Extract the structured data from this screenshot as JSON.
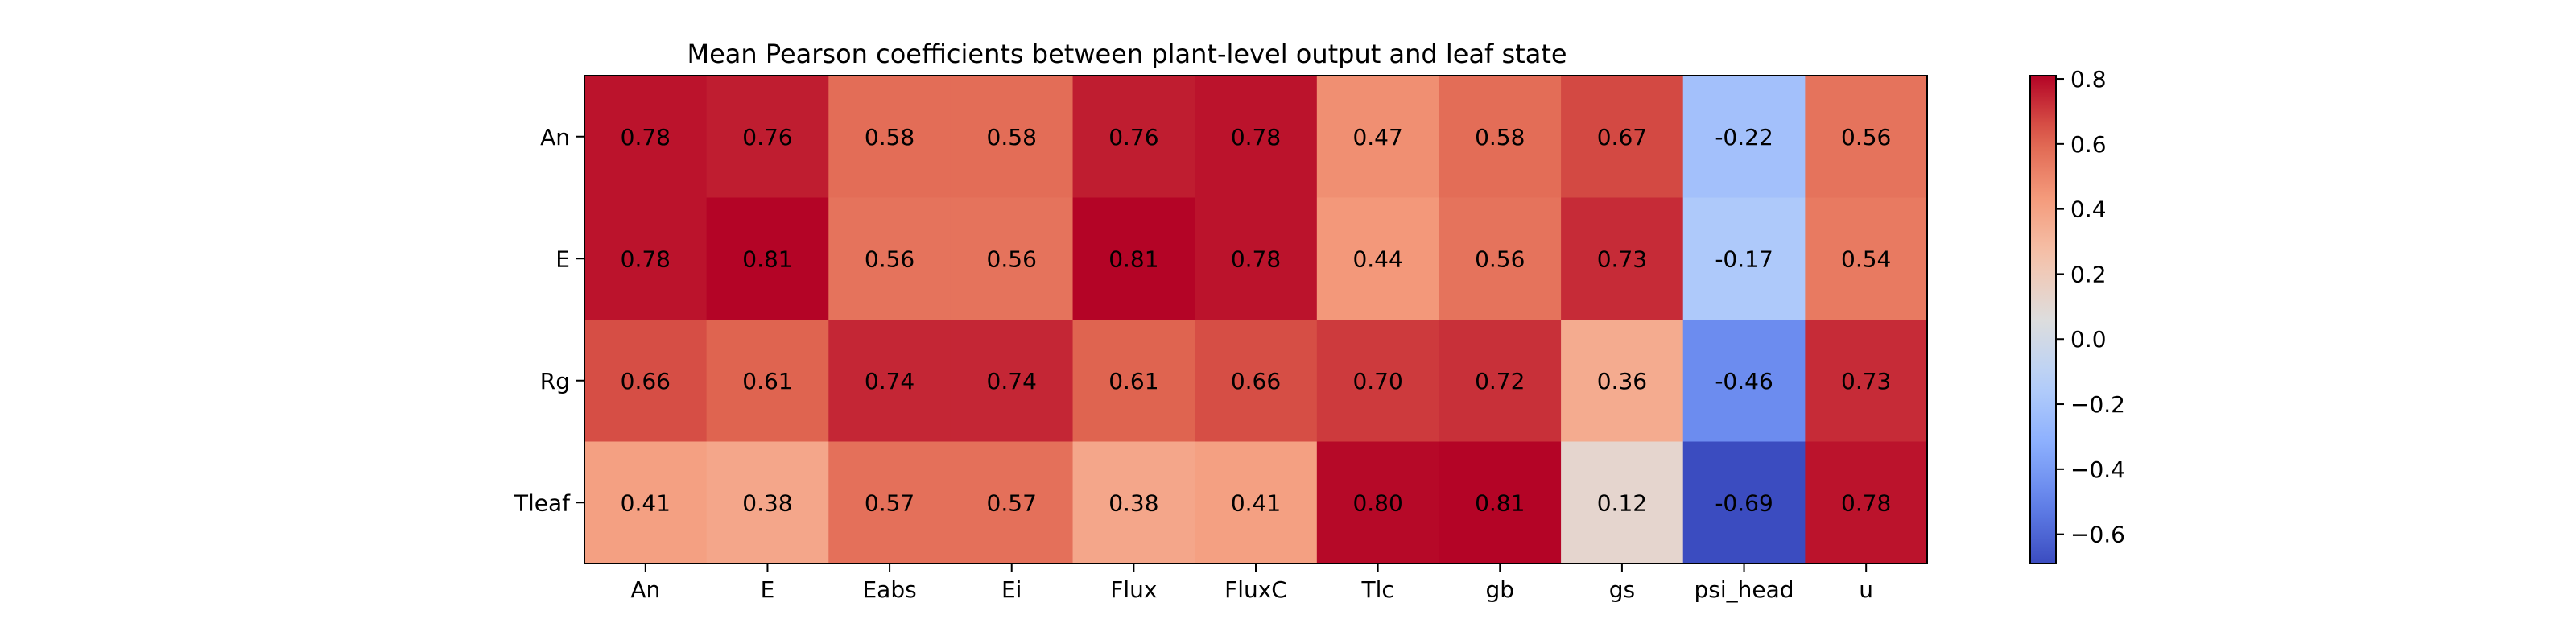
{
  "chart_data": {
    "type": "heatmap",
    "title": "Mean Pearson coefficients between plant-level output and leaf state",
    "x": [
      "An",
      "E",
      "Eabs",
      "Ei",
      "Flux",
      "FluxC",
      "Tlc",
      "gb",
      "gs",
      "psi_head",
      "u"
    ],
    "y": [
      "An",
      "E",
      "Rg",
      "Tleaf"
    ],
    "values": [
      [
        0.78,
        0.76,
        0.58,
        0.58,
        0.76,
        0.78,
        0.47,
        0.58,
        0.67,
        -0.22,
        0.56
      ],
      [
        0.78,
        0.81,
        0.56,
        0.56,
        0.81,
        0.78,
        0.44,
        0.56,
        0.73,
        -0.17,
        0.54
      ],
      [
        0.66,
        0.61,
        0.74,
        0.74,
        0.61,
        0.66,
        0.7,
        0.72,
        0.36,
        -0.46,
        0.73
      ],
      [
        0.41,
        0.38,
        0.57,
        0.57,
        0.38,
        0.41,
        0.8,
        0.81,
        0.12,
        -0.69,
        0.78
      ]
    ],
    "value_format": "2dp",
    "colormap": "coolwarm",
    "colorbar": {
      "range": [
        -0.69,
        0.81
      ],
      "ticks": [
        0.8,
        0.6,
        0.4,
        0.2,
        0.0,
        -0.2,
        -0.4,
        -0.6
      ],
      "tick_labels": [
        "0.8",
        "0.6",
        "0.4",
        "0.2",
        "0.0",
        "−0.2",
        "−0.4",
        "−0.6"
      ],
      "placement": "right"
    },
    "grid": false
  }
}
